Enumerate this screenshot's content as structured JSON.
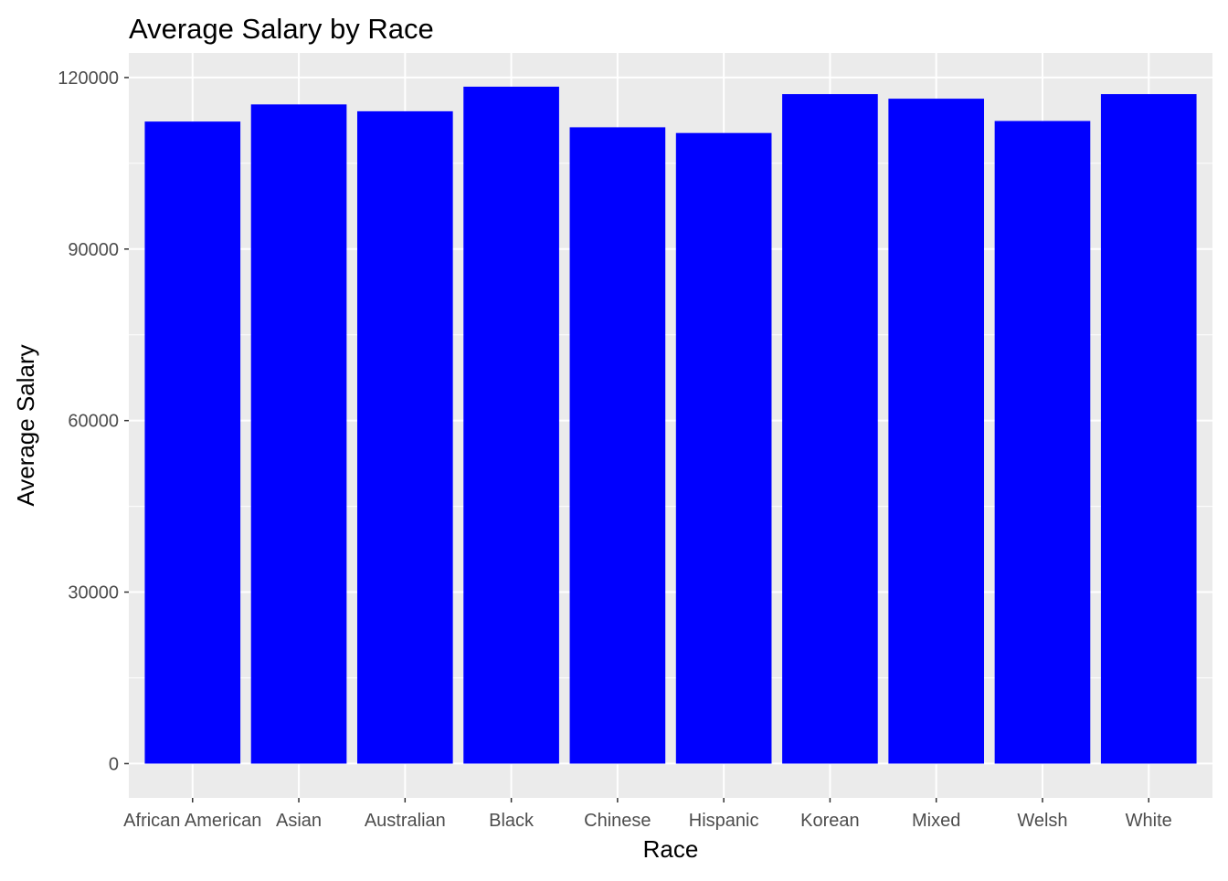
{
  "chart_data": {
    "type": "bar",
    "title": "Average Salary by Race",
    "xlabel": "Race",
    "ylabel": "Average Salary",
    "categories": [
      "African American",
      "Asian",
      "Australian",
      "Black",
      "Chinese",
      "Hispanic",
      "Korean",
      "Mixed",
      "Welsh",
      "White"
    ],
    "values": [
      112300,
      115300,
      114100,
      118400,
      111300,
      110300,
      117100,
      116300,
      112400,
      117100
    ],
    "ylim": [
      -6000,
      124300
    ],
    "yticks": [
      0,
      30000,
      60000,
      90000,
      120000
    ],
    "ytick_labels": [
      "0",
      "30000",
      "60000",
      "90000",
      "120000"
    ],
    "grid": true,
    "bar_color": "#0000FF",
    "panel_background": "#EBEBEB",
    "grid_color": "#FFFFFF",
    "tick_label_color": "#4D4D4D",
    "text_color": "#000000"
  }
}
